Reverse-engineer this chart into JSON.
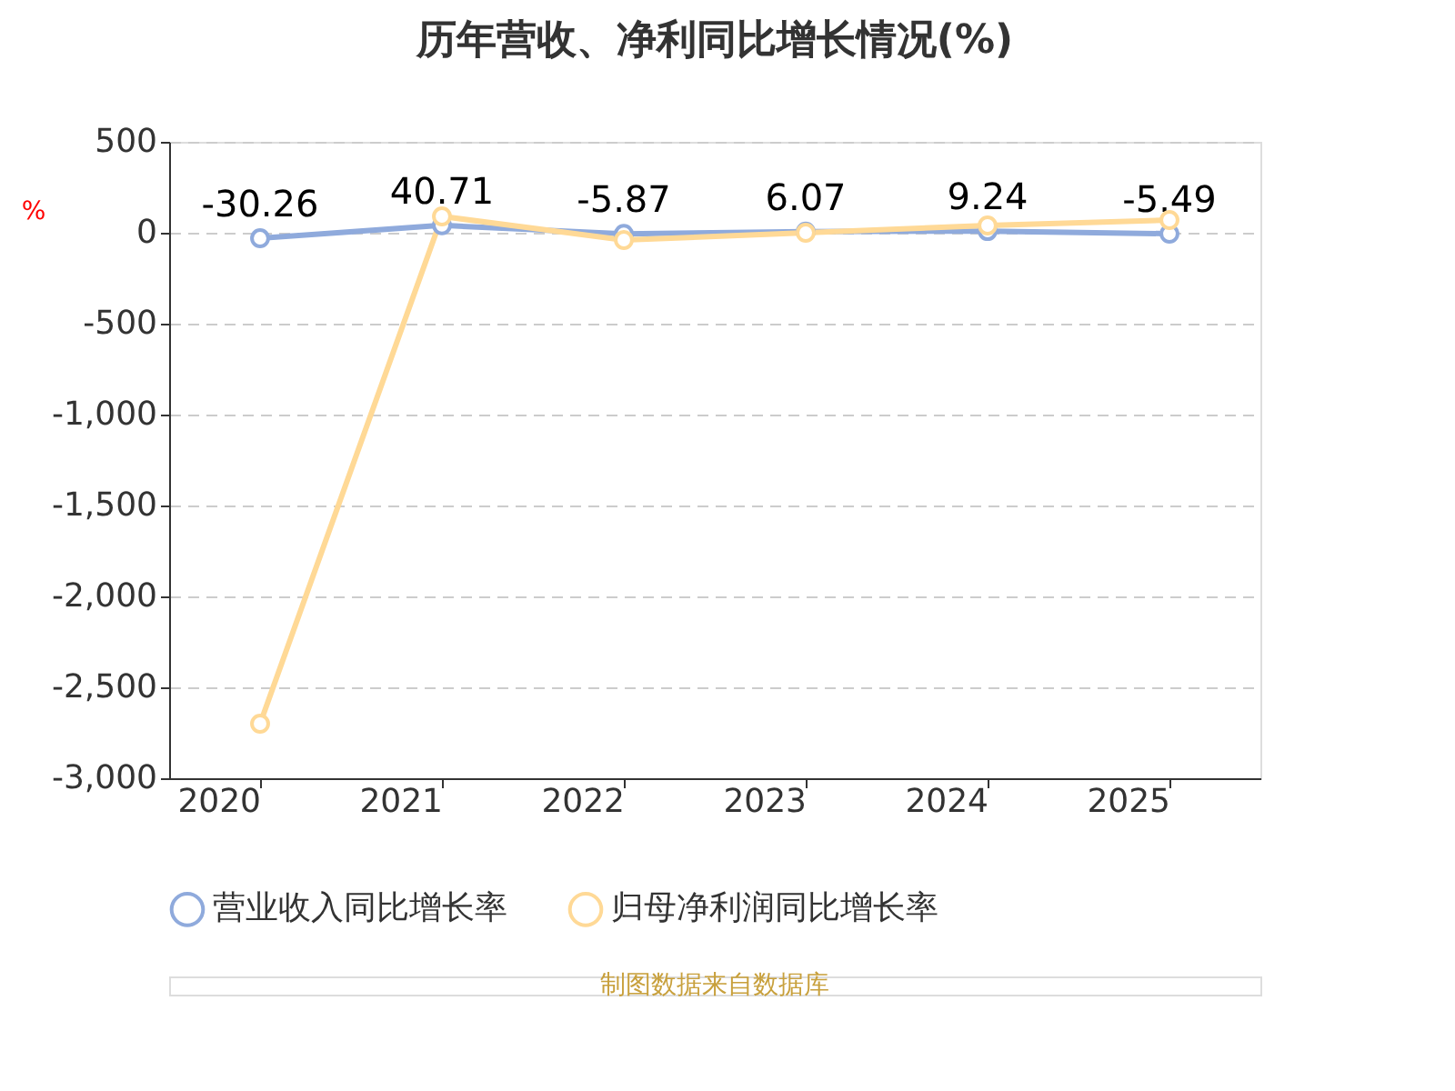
{
  "chart_data": {
    "type": "line",
    "title": "历年营收、净利同比增长情况(%)",
    "ylabel": "%",
    "categories": [
      "2020",
      "2021",
      "2022",
      "2023",
      "2024",
      "2025"
    ],
    "series": [
      {
        "name": "营业收入同比增长率",
        "color": "#8faadc",
        "values": [
          -30.26,
          40.71,
          -5.87,
          6.07,
          9.24,
          -5.49
        ],
        "value_labels": [
          "-30.26",
          "40.71",
          "-5.87",
          "6.07",
          "9.24",
          "-5.49"
        ]
      },
      {
        "name": "归母净利润同比增长率",
        "color": "#ffd996",
        "values": [
          -2700,
          90,
          -40,
          0,
          40,
          70
        ]
      }
    ],
    "ylim": [
      -3000,
      500
    ],
    "yticks": [
      500,
      0,
      -500,
      {
        "value": -1000,
        "label": "-1,000"
      },
      {
        "value": -1500,
        "label": "-1,500"
      },
      {
        "value": -2000,
        "label": "-2,000"
      },
      {
        "value": -2500,
        "label": "-2,500"
      },
      {
        "value": -3000,
        "label": "-3,000"
      }
    ],
    "grid": "y",
    "legend": "bottom",
    "marker": "circle",
    "line_style": "solid",
    "annotations": [
      "制图数据来自数据库"
    ]
  }
}
